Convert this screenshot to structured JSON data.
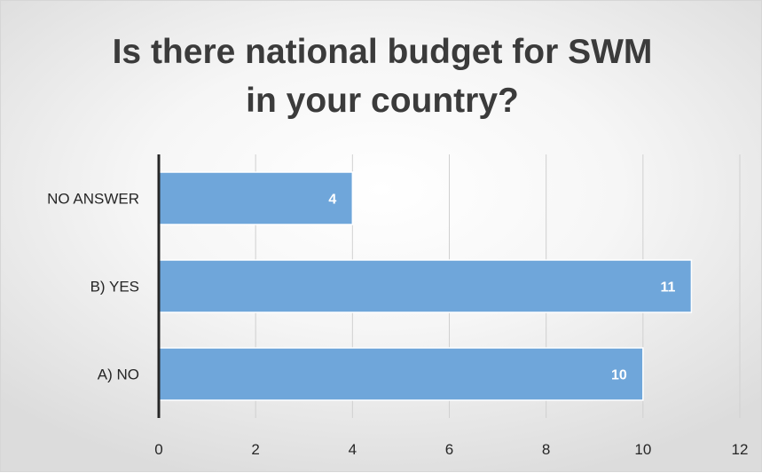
{
  "chart_data": {
    "type": "bar",
    "orientation": "horizontal",
    "title": "Is there national budget for SWM in your country?",
    "title_lines": [
      "Is there national budget for SWM",
      "in your country?"
    ],
    "categories": [
      "NO ANSWER",
      "B) YES",
      "A) NO"
    ],
    "values": [
      4,
      11,
      10
    ],
    "data_labels": [
      "4",
      "11",
      "10"
    ],
    "xlim": [
      0,
      12
    ],
    "x_ticks": [
      0,
      2,
      4,
      6,
      8,
      10,
      12
    ],
    "x_tick_labels": [
      "0",
      "2",
      "4",
      "6",
      "8",
      "10",
      "12"
    ],
    "xlabel": "",
    "ylabel": "",
    "grid": "vertical",
    "legend": "none",
    "colors": {
      "bar_fill": "#6fa6da",
      "bar_stroke": "#ffffff",
      "grid": "#d0d0d0",
      "axis": "#262626",
      "data_label": "#ffffff",
      "title": "#3b3b3b"
    }
  }
}
